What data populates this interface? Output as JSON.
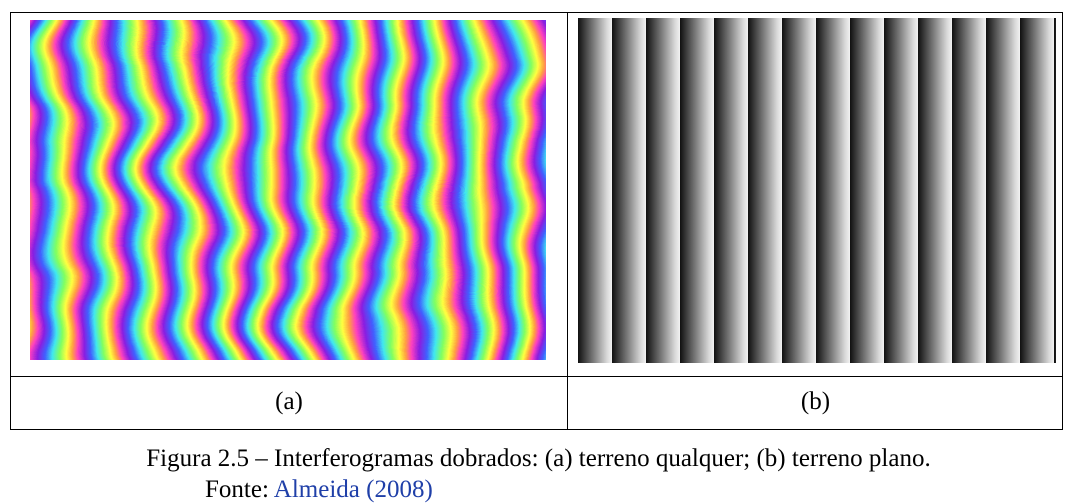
{
  "figure": {
    "panels": [
      {
        "label": "(a)"
      },
      {
        "label": "(b)"
      }
    ],
    "caption": "Figura 2.5 – Interferogramas dobrados: (a) terreno qualquer; (b) terreno plano.",
    "source": {
      "prefix": "Fonte:",
      "reference": "Almeida (2008)"
    }
  }
}
